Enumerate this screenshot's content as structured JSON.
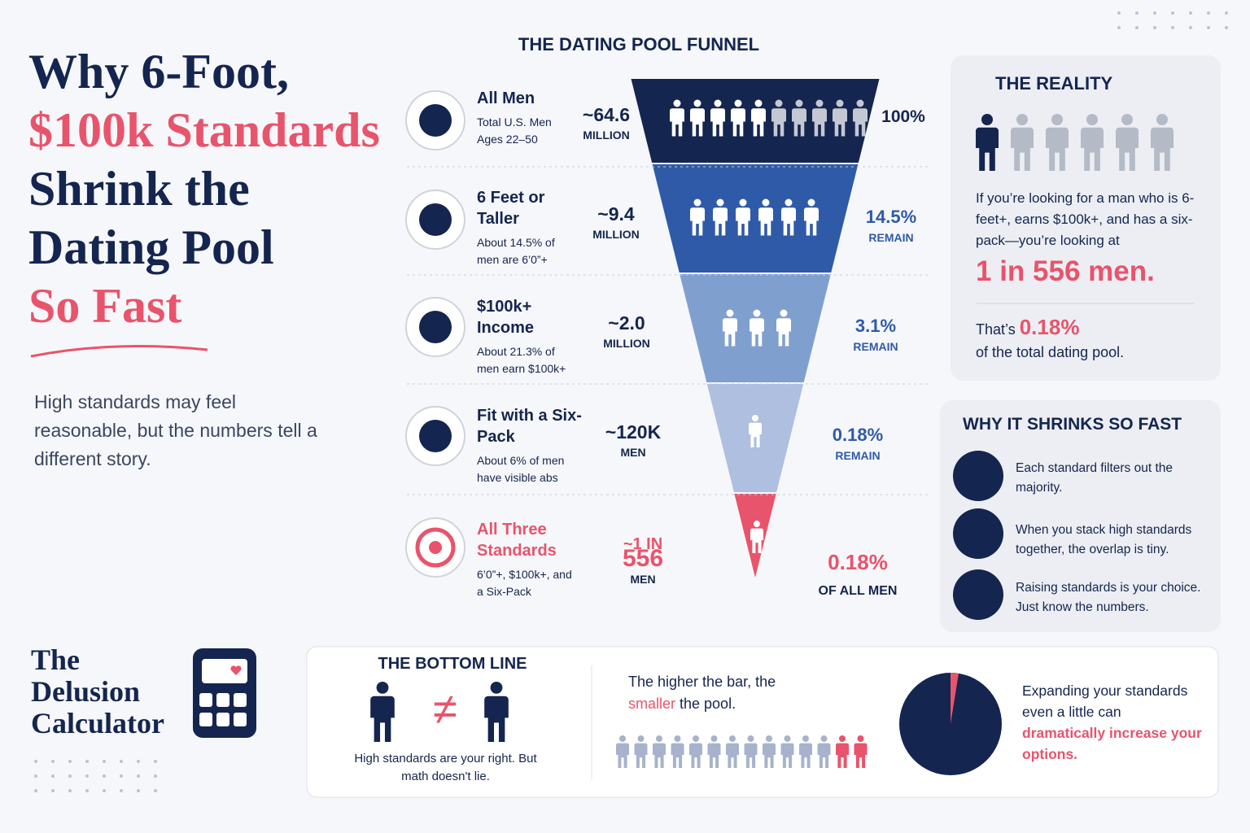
{
  "header": {
    "title_lines": [
      "Why 6-Foot,",
      "$100k Standards",
      "Shrink the",
      "Dating Pool",
      "So Fast"
    ],
    "subtitle": "High standards may feel reasonable, but the numbers tell a different story."
  },
  "funnel": {
    "title": "THE DATING POOL FUNNEL",
    "rows": [
      {
        "label": "All Men",
        "note": "Total U.S. Men Ages 22–50",
        "count": "~64.6",
        "unit": "MILLION",
        "percent": "100%"
      },
      {
        "label": "6 Feet or Taller",
        "note": "About 14.5% of men are 6’0”+",
        "count": "~9.4",
        "unit": "MILLION",
        "percent": "14.5%",
        "percent_note": "REMAIN"
      },
      {
        "label": "$100k+ Income",
        "note": "About 21.3% of men earn $100k+",
        "count": "~2.0",
        "unit": "MILLION",
        "percent": "3.1%",
        "percent_note": "REMAIN"
      },
      {
        "label": "Fit with a Six-Pack",
        "note": "About 6% of men have visible abs",
        "count": "~120K",
        "unit": "MEN",
        "percent": "0.18%",
        "percent_note": "REMAIN"
      },
      {
        "label": "All Three Standards",
        "note": "6’0”+, $100k+, and a Six-Pack",
        "count": "~1 IN",
        "count_big": "556",
        "unit": "MEN",
        "percent": "0.18%",
        "percent_note": "OF ALL MEN"
      }
    ]
  },
  "reality": {
    "title": "THE REALITY",
    "text": "If you’re looking for a man who is 6-feet+, earns $100k+, and has a six-pack—you’re looking at",
    "highlight": "1 in 556 men.",
    "share_prefix": "That’s",
    "share": "0.18%",
    "share_suffix": "of the total dating pool."
  },
  "why": {
    "title": "WHY IT SHRINKS SO FAST",
    "items": [
      "Each standard filters out the majority.",
      "When you stack high standards together, the overlap is tiny.",
      "Raising standards is your choice. Just know the numbers."
    ]
  },
  "brand": {
    "lines": [
      "The",
      "Delusion",
      "Calculator"
    ]
  },
  "bottom": {
    "title": "THE BOTTOM LINE",
    "caption": "High standards are your right. But math doesn't lie.",
    "bar_text": [
      "The higher the bar, the ",
      "smaller",
      " the pool."
    ],
    "expand_text": [
      "Expanding your standards even a little can ",
      "dramatically increase your options."
    ]
  }
}
